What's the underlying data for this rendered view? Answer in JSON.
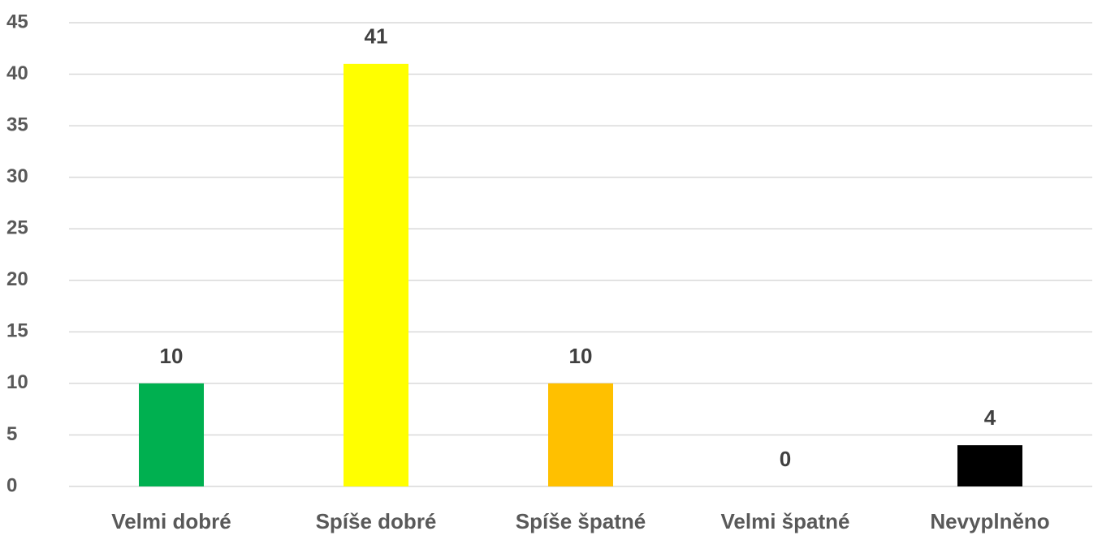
{
  "chart_data": {
    "type": "bar",
    "categories": [
      "Velmi dobré",
      "Spíše dobré",
      "Spíše špatné",
      "Velmi špatné",
      "Nevyplněno"
    ],
    "values": [
      10,
      41,
      10,
      0,
      4
    ],
    "colors": [
      "#00b050",
      "#ffff00",
      "#ffc000",
      "#7f7f7f",
      "#000000"
    ],
    "ylim": [
      0,
      45
    ],
    "yticks": [
      0,
      5,
      10,
      15,
      20,
      25,
      30,
      35,
      40,
      45
    ],
    "grid": true
  }
}
